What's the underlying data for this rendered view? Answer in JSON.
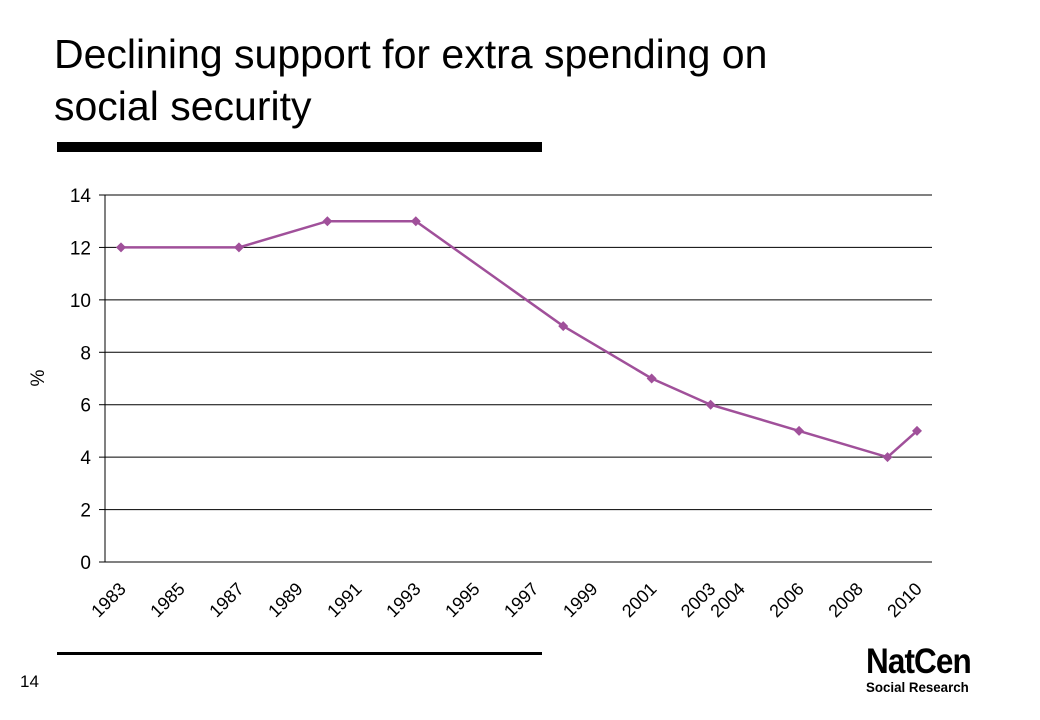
{
  "slide": {
    "title": "Declining support for extra spending on social security",
    "number": "14",
    "logo": {
      "name": "NatCen",
      "tagline": "Social Research"
    }
  },
  "chart_data": {
    "type": "line",
    "title": "",
    "xlabel": "",
    "ylabel": "%",
    "ylim": [
      0,
      14
    ],
    "yticks": [
      0,
      2,
      4,
      6,
      8,
      10,
      12,
      14
    ],
    "grid": true,
    "legend": "none",
    "categories": [
      "1983",
      "1985",
      "1987",
      "1989",
      "1991",
      "1993",
      "1995",
      "1997",
      "1999",
      "2001",
      "2003",
      "2004",
      "2006",
      "2008",
      "2010"
    ],
    "series": [
      {
        "color": "#a0509a",
        "points": [
          {
            "x": "1983",
            "y": 12
          },
          {
            "x": "1987",
            "y": 12
          },
          {
            "x": "1990",
            "y": 13
          },
          {
            "x": "1993",
            "y": 13
          },
          {
            "x": "1998",
            "y": 9
          },
          {
            "x": "2001",
            "y": 7
          },
          {
            "x": "2003",
            "y": 6
          },
          {
            "x": "2006",
            "y": 5
          },
          {
            "x": "2009",
            "y": 4
          },
          {
            "x": "2010",
            "y": 5
          }
        ]
      }
    ]
  }
}
